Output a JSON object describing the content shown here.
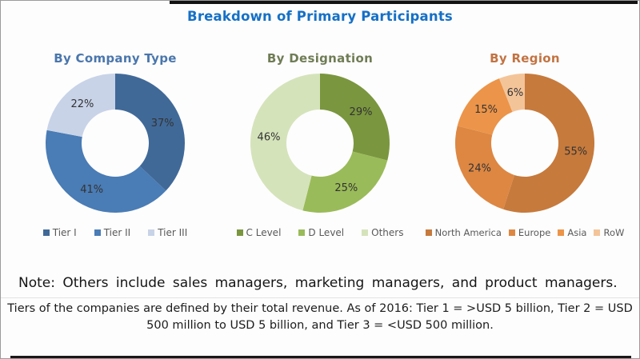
{
  "title": "Breakdown of Primary Participants",
  "title_color": "#1570C6",
  "note": "Note: Others include sales managers, marketing managers, and product managers.",
  "footnote_lines": [
    "Tiers of the companies are defined by their total revenue. As of 2016: Tier 1 = >USD 5 billion, Tier 2 = USD",
    "500 million to USD 5 billion, and Tier 3 = <USD 500 million."
  ],
  "chart_data": [
    {
      "type": "pie",
      "subtype": "donut",
      "title": "By Company Type",
      "title_color": "#4A76AC",
      "labels": [
        "Tier I",
        "Tier II",
        "Tier III"
      ],
      "values": [
        37,
        41,
        22
      ],
      "colors": [
        "#406998",
        "#4A7CB5",
        "#C8D3E8"
      ],
      "value_suffix": "%",
      "legend_position": "bottom",
      "start_angle": "top",
      "direction": "clockwise"
    },
    {
      "type": "pie",
      "subtype": "donut",
      "title": "By Designation",
      "title_color": "#6F7C55",
      "labels": [
        "C Level",
        "D Level",
        "Others"
      ],
      "values": [
        29,
        25,
        46
      ],
      "colors": [
        "#7A963F",
        "#9ABB59",
        "#D5E3BB"
      ],
      "value_suffix": "%",
      "legend_position": "bottom",
      "start_angle": "top",
      "direction": "clockwise"
    },
    {
      "type": "pie",
      "subtype": "donut",
      "title": "By Region",
      "title_color": "#C27342",
      "labels": [
        "North America",
        "Europe",
        "Asia",
        "RoW"
      ],
      "values": [
        55,
        24,
        15,
        6
      ],
      "colors": [
        "#C67A3C",
        "#DD8743",
        "#EC9449",
        "#F4C499"
      ],
      "value_suffix": "%",
      "legend_position": "bottom",
      "start_angle": "top",
      "direction": "clockwise"
    }
  ]
}
